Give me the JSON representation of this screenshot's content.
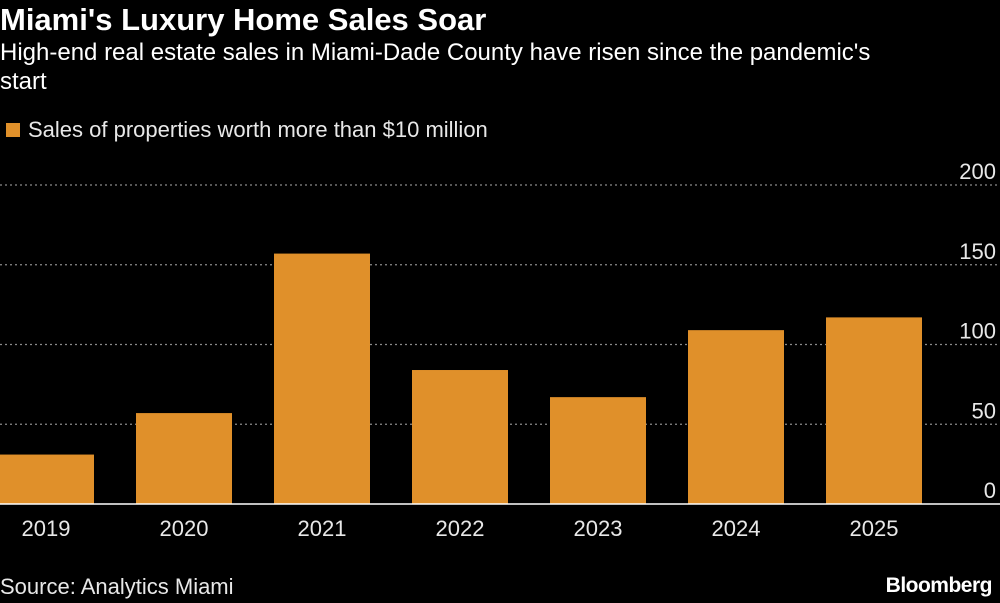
{
  "colors": {
    "background": "#000000",
    "bar": "#e0902a",
    "grid": "#8a8a8a",
    "text": "#ffffff"
  },
  "footer": {
    "source": "Source: Analytics Miami",
    "brand": "Bloomberg"
  },
  "chart_data": {
    "type": "bar",
    "title": "Miami's Luxury Home Sales Soar",
    "subtitle": "High-end real estate sales in Miami-Dade County have risen since the pandemic's start",
    "categories": [
      "2019",
      "2020",
      "2021",
      "2022",
      "2023",
      "2024",
      "2025"
    ],
    "series": [
      {
        "name": "Sales of properties worth more than $10 million",
        "values": [
          31,
          57,
          157,
          84,
          67,
          109,
          117
        ]
      }
    ],
    "ylim": [
      0,
      200
    ],
    "yticks": [
      0,
      50,
      100,
      150,
      200
    ],
    "ytick_labels": [
      "0",
      "50",
      "100",
      "150",
      "200"
    ],
    "yaxis_side": "right",
    "grid": true,
    "legend": "top-left"
  }
}
